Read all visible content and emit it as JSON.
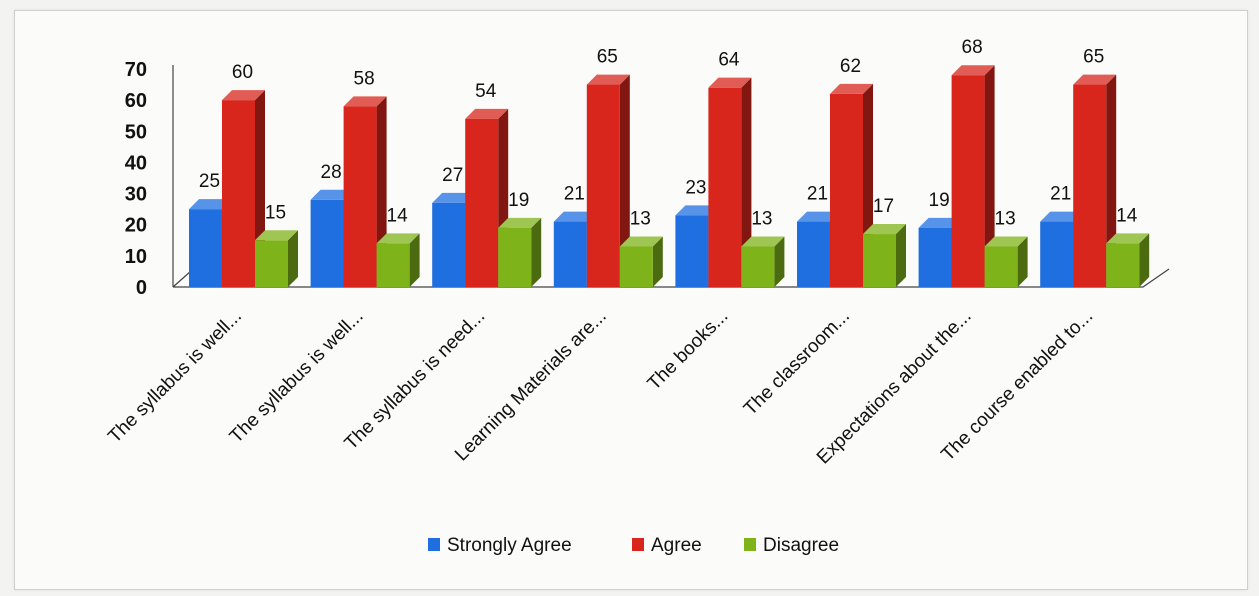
{
  "chart_data": {
    "type": "bar",
    "title": "",
    "xlabel": "",
    "ylabel": "",
    "ylim": [
      0,
      70
    ],
    "yticks": [
      0,
      10,
      20,
      30,
      40,
      50,
      60,
      70
    ],
    "grid": false,
    "legend_position": "bottom",
    "categories": [
      "The syllabus is well...",
      "The syllabus is well...",
      "The syllabus is need...",
      "Learning Materials are...",
      "The books...",
      "The classroom...",
      "Expectations about the...",
      "The course enabled to..."
    ],
    "series": [
      {
        "name": "Strongly Agree",
        "color": "#1f6fe0",
        "values": [
          25,
          28,
          27,
          21,
          23,
          21,
          19,
          21
        ]
      },
      {
        "name": "Agree",
        "color": "#d8261d",
        "values": [
          60,
          58,
          54,
          65,
          64,
          62,
          68,
          65
        ]
      },
      {
        "name": "Disagree",
        "color": "#7fb31a",
        "values": [
          15,
          14,
          19,
          13,
          13,
          17,
          13,
          14
        ]
      }
    ]
  }
}
